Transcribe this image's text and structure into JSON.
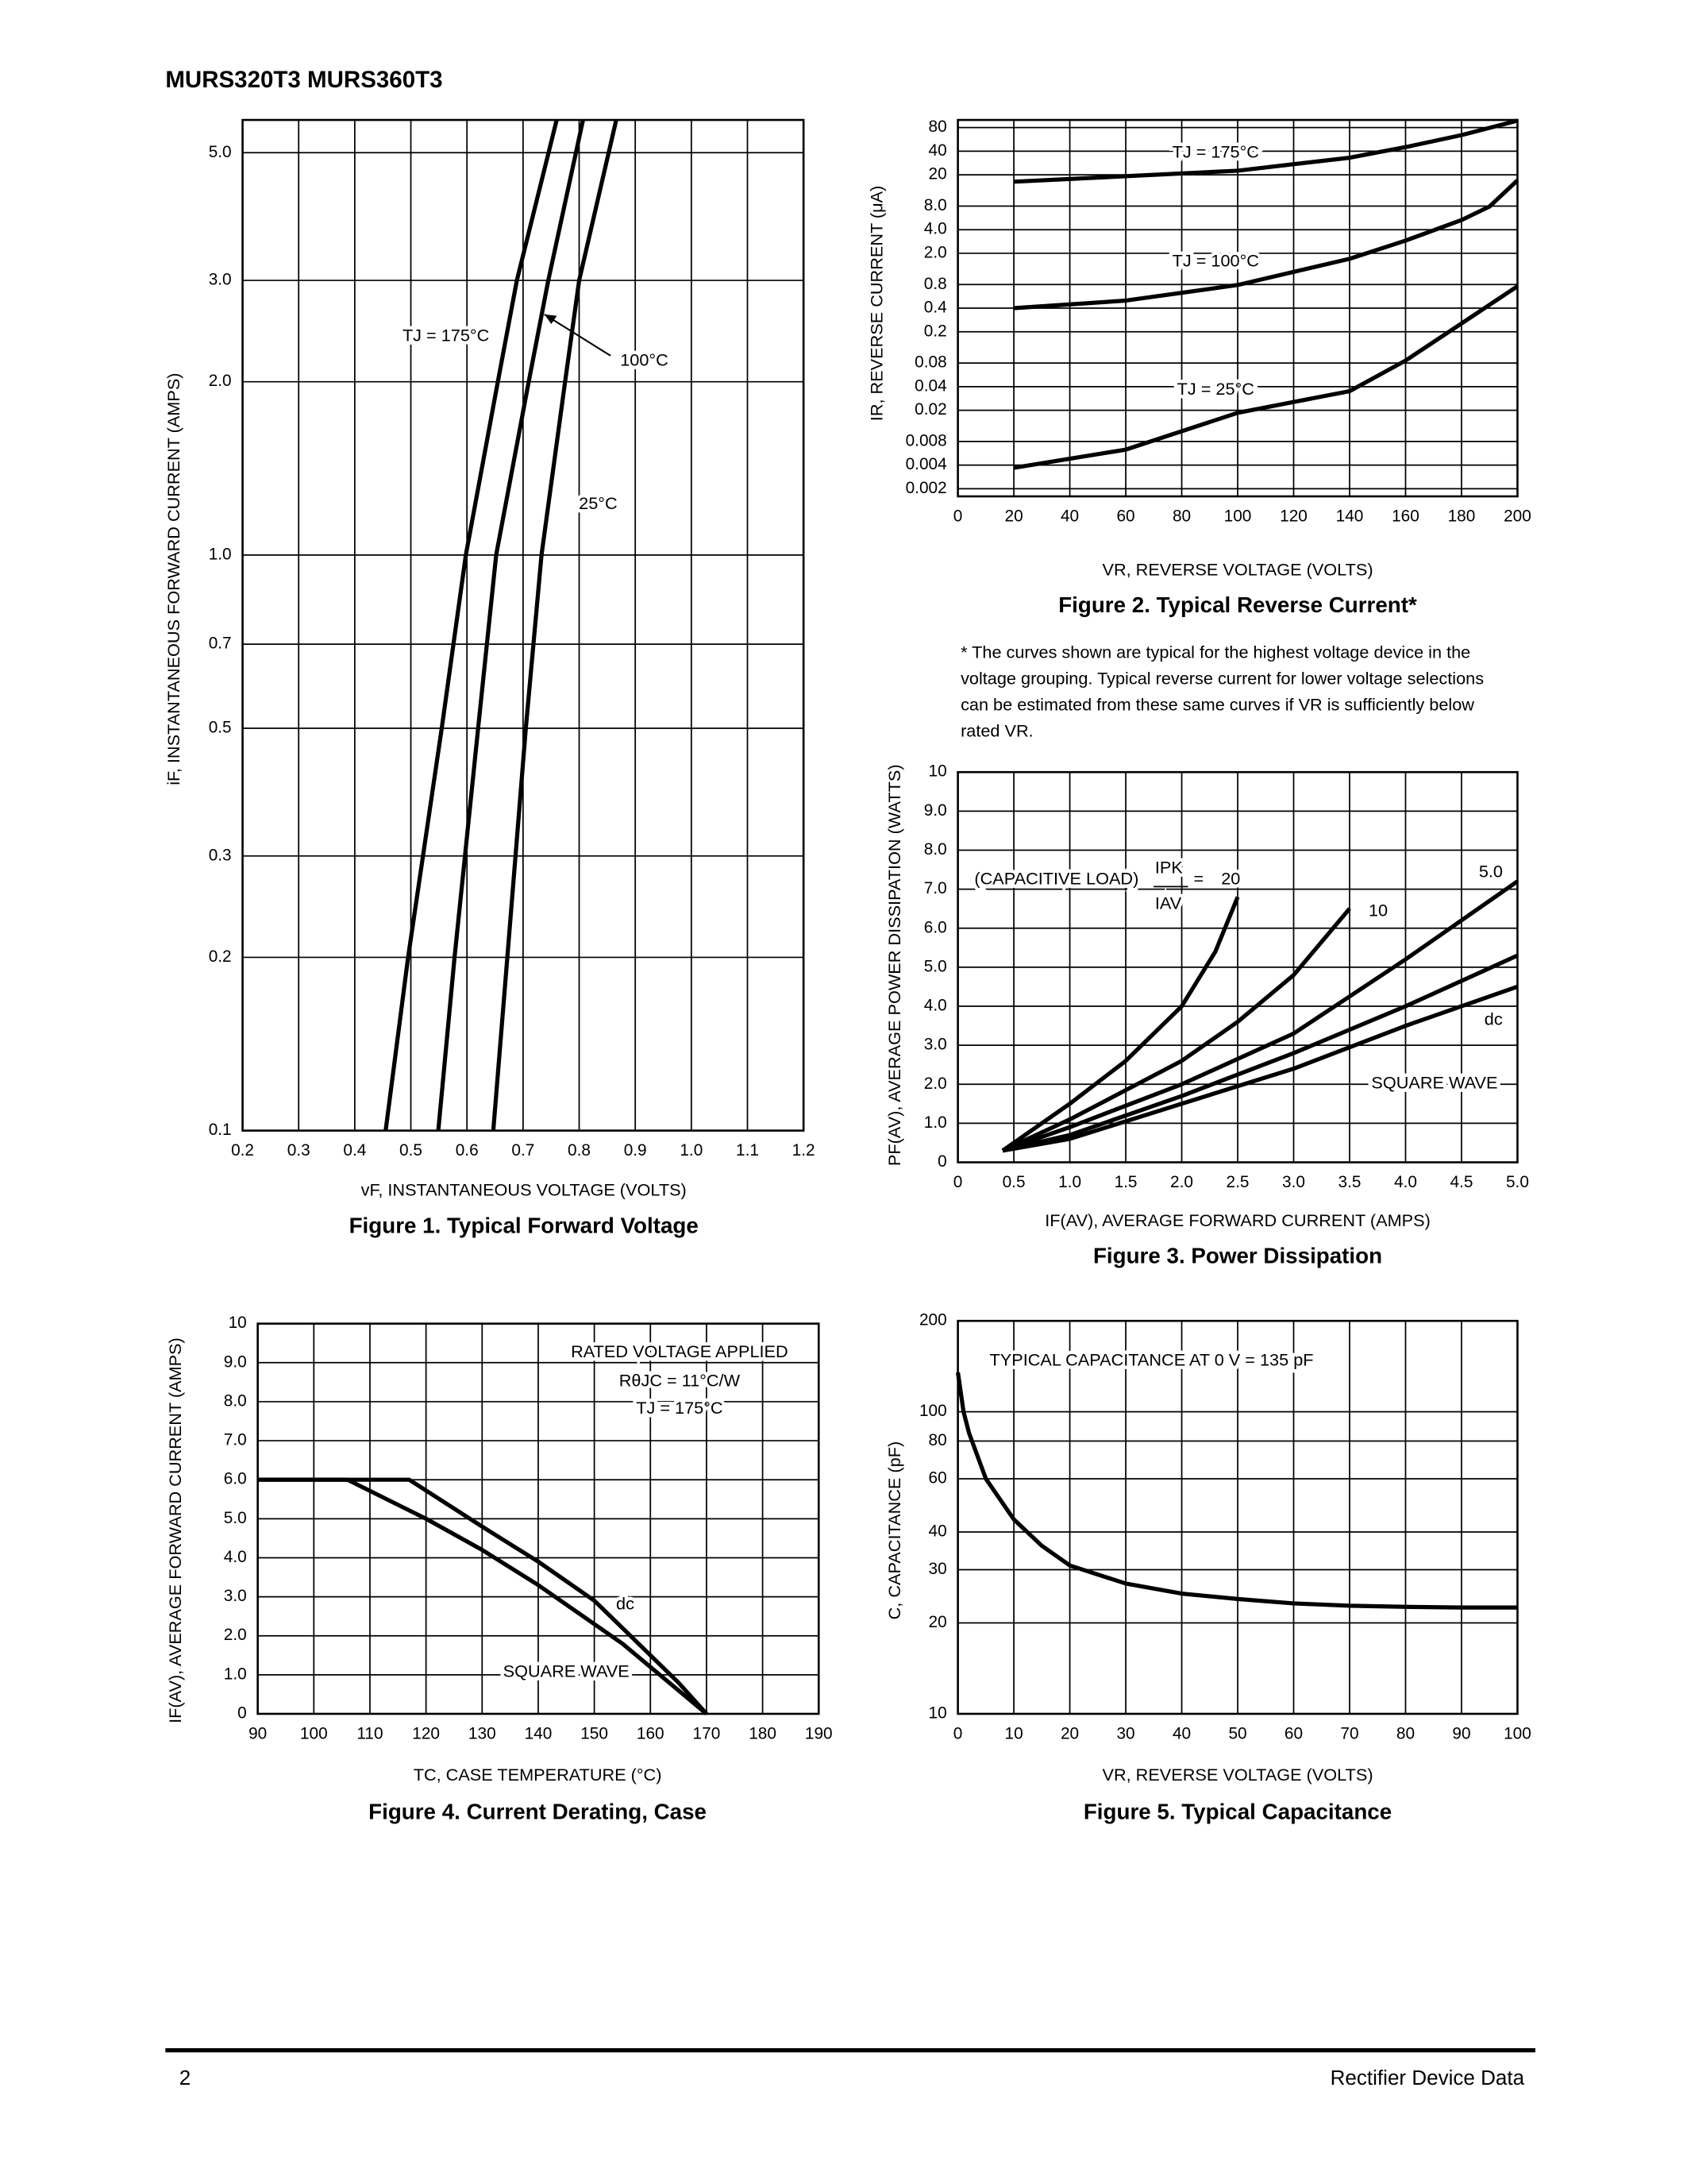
{
  "header": {
    "title": "MURS320T3 MURS360T3"
  },
  "footer": {
    "page": "2",
    "label": "Rectifier Device Data"
  },
  "chart_data": [
    {
      "type": "line",
      "title": "Figure 1. Typical Forward Voltage",
      "xlabel": "vF, INSTANTANEOUS VOLTAGE (VOLTS)",
      "ylabel": "iF, INSTANTANEOUS FORWARD CURRENT (AMPS)",
      "xlim": [
        0.2,
        1.2
      ],
      "ylim": [
        0.1,
        5.7
      ],
      "ylog": true,
      "grid": true,
      "xticks": [
        0.2,
        0.3,
        0.4,
        0.5,
        0.6,
        0.7,
        0.8,
        0.9,
        {
          "value": 1,
          "label": "1.0"
        },
        1.1,
        1.2
      ],
      "yticks": [
        0.1,
        0.2,
        0.3,
        0.5,
        0.7,
        {
          "value": 1,
          "label": "1.0"
        },
        {
          "value": 2,
          "label": "2.0"
        },
        {
          "value": 3,
          "label": "3.0"
        },
        {
          "value": 5,
          "label": "5.0"
        }
      ],
      "series": [
        {
          "name": "TJ = 175°C",
          "color": "#000000",
          "x": [
            0.455,
            0.495,
            0.555,
            0.598,
            0.655,
            0.689,
            0.76
          ],
          "values": [
            0.1,
            0.2,
            0.5,
            1,
            2,
            3,
            5.7
          ]
        },
        {
          "name": "100°C",
          "color": "#000000",
          "x": [
            0.549,
            0.578,
            0.62,
            0.652,
            0.71,
            0.745,
            0.807
          ],
          "values": [
            0.1,
            0.2,
            0.5,
            1,
            2,
            3,
            5.7
          ]
        },
        {
          "name": "25°C",
          "color": "#000000",
          "x": [
            0.647,
            0.672,
            0.705,
            0.733,
            0.775,
            0.8,
            0.866
          ],
          "values": [
            0.1,
            0.2,
            0.5,
            1,
            2,
            3,
            5.7
          ]
        }
      ]
    },
    {
      "type": "line",
      "title": "Figure 2. Typical Reverse Current*",
      "xlabel": "VR, REVERSE VOLTAGE (VOLTS)",
      "ylabel": "IR, REVERSE CURRENT (μA)",
      "xlim": [
        0,
        200
      ],
      "ylim": [
        0.0016,
        100
      ],
      "ylog": true,
      "grid": true,
      "xticks": [
        0,
        20,
        40,
        60,
        80,
        100,
        120,
        140,
        160,
        180,
        200
      ],
      "yticks": [
        0.002,
        0.004,
        0.008,
        0.02,
        0.04,
        0.08,
        0.2,
        0.4,
        0.8,
        {
          "value": 2,
          "label": "2.0"
        },
        {
          "value": 4,
          "label": "4.0"
        },
        {
          "value": 8,
          "label": "8.0"
        },
        20,
        40,
        80
      ],
      "series": [
        {
          "name": "TJ = 175°C",
          "color": "#000000",
          "x": [
            20,
            100,
            140,
            160,
            180,
            200
          ],
          "values": [
            16.3,
            22.6,
            33,
            45,
            64,
            98
          ]
        },
        {
          "name": "TJ = 100°C",
          "color": "#000000",
          "x": [
            20,
            60,
            100,
            140,
            160,
            180,
            190,
            200
          ],
          "values": [
            0.4,
            0.5,
            0.79,
            1.7,
            2.9,
            5.3,
            7.9,
            17
          ]
        },
        {
          "name": "TJ = 25°C",
          "color": "#000000",
          "x": [
            20,
            60,
            100,
            140,
            160,
            180,
            200
          ],
          "values": [
            0.0037,
            0.0063,
            0.0186,
            0.035,
            0.086,
            0.255,
            0.76
          ]
        }
      ],
      "note": [
        "* The curves shown are typical for the highest voltage device in the",
        "voltage grouping. Typical reverse current for lower voltage selections",
        "can be estimated from these same curves if VR is sufficiently below",
        "rated VR."
      ]
    },
    {
      "type": "line",
      "title": "Figure 3. Power Dissipation",
      "xlabel": "IF(AV), AVERAGE FORWARD CURRENT (AMPS)",
      "ylabel": "PF(AV), AVERAGE POWER DISSIPATION (WATTS)",
      "xlim": [
        0,
        5
      ],
      "ylim": [
        0,
        10
      ],
      "grid": true,
      "xticks": [
        0,
        0.5,
        {
          "value": 1,
          "label": "1.0"
        },
        1.5,
        {
          "value": 2,
          "label": "2.0"
        },
        2.5,
        {
          "value": 3,
          "label": "3.0"
        },
        3.5,
        {
          "value": 4,
          "label": "4.0"
        },
        4.5,
        {
          "value": 5,
          "label": "5.0"
        }
      ],
      "yticks": [
        0,
        {
          "value": 1,
          "label": "1.0"
        },
        {
          "value": 2,
          "label": "2.0"
        },
        {
          "value": 3,
          "label": "3.0"
        },
        {
          "value": 4,
          "label": "4.0"
        },
        {
          "value": 5,
          "label": "5.0"
        },
        {
          "value": 6,
          "label": "6.0"
        },
        {
          "value": 7,
          "label": "7.0"
        },
        {
          "value": 8,
          "label": "8.0"
        },
        {
          "value": 9,
          "label": "9.0"
        },
        10
      ],
      "series": [
        {
          "name": "20",
          "color": "#000000",
          "x": [
            0.4,
            1,
            1.5,
            2,
            2.3,
            2.5
          ],
          "values": [
            0.3,
            1.5,
            2.6,
            4,
            5.4,
            6.8
          ]
        },
        {
          "name": "10",
          "color": "#000000",
          "x": [
            0.4,
            1,
            2,
            2.5,
            3,
            3.5
          ],
          "values": [
            0.3,
            1.1,
            2.6,
            3.6,
            4.8,
            6.5
          ]
        },
        {
          "name": "5.0",
          "color": "#000000",
          "x": [
            0.4,
            1,
            2,
            3,
            4,
            5
          ],
          "values": [
            0.3,
            0.9,
            2,
            3.3,
            5.2,
            7.2
          ]
        },
        {
          "name": "dc",
          "color": "#000000",
          "x": [
            0.4,
            1,
            2,
            3,
            4,
            5
          ],
          "values": [
            0.3,
            0.6,
            1.5,
            2.4,
            3.5,
            4.5
          ]
        },
        {
          "name": "SQUARE WAVE",
          "color": "#000000",
          "x": [
            0.4,
            1,
            2,
            3,
            4,
            5
          ],
          "values": [
            0.3,
            0.7,
            1.7,
            2.8,
            4,
            5.3
          ]
        }
      ],
      "annotations": [
        "(CAPACITIVE  LOAD)",
        "IPK",
        "IAV",
        "="
      ]
    },
    {
      "type": "line",
      "title": "Figure 4. Current Derating, Case",
      "xlabel": "TC, CASE TEMPERATURE (°C)",
      "ylabel": "IF(AV), AVERAGE FORWARD CURRENT (AMPS)",
      "xlim": [
        90,
        190
      ],
      "ylim": [
        0,
        10
      ],
      "grid": true,
      "xticks": [
        90,
        100,
        110,
        120,
        130,
        140,
        150,
        160,
        170,
        180,
        190
      ],
      "yticks": [
        0,
        {
          "value": 1,
          "label": "1.0"
        },
        {
          "value": 2,
          "label": "2.0"
        },
        {
          "value": 3,
          "label": "3.0"
        },
        {
          "value": 4,
          "label": "4.0"
        },
        {
          "value": 5,
          "label": "5.0"
        },
        {
          "value": 6,
          "label": "6.0"
        },
        {
          "value": 7,
          "label": "7.0"
        },
        {
          "value": 8,
          "label": "8.0"
        },
        {
          "value": 9,
          "label": "9.0"
        },
        10
      ],
      "series": [
        {
          "name": "dc",
          "color": "#000000",
          "x": [
            90,
            117,
            130,
            140,
            150,
            155,
            160,
            165,
            170
          ],
          "values": [
            6,
            6,
            4.8,
            3.9,
            2.9,
            2.2,
            1.5,
            0.8,
            0
          ]
        },
        {
          "name": "SQUARE WAVE",
          "color": "#000000",
          "x": [
            90,
            106,
            120,
            130,
            140,
            150,
            155,
            160,
            170
          ],
          "values": [
            6,
            6,
            5,
            4.2,
            3.3,
            2.3,
            1.8,
            1.2,
            0
          ]
        }
      ],
      "annotations": [
        "RATED VOLTAGE APPLIED",
        "RθJC = 11°C/W",
        "TJ = 175°C"
      ]
    },
    {
      "type": "line",
      "title": "Figure 5. Typical Capacitance",
      "xlabel": "VR, REVERSE VOLTAGE (VOLTS)",
      "ylabel": "C, CAPACITANCE (pF)",
      "xlim": [
        0,
        100
      ],
      "ylim": [
        10,
        200
      ],
      "ylog": true,
      "grid": true,
      "xticks": [
        0,
        10,
        20,
        30,
        40,
        50,
        60,
        70,
        80,
        90,
        100
      ],
      "yticks": [
        10,
        20,
        30,
        40,
        60,
        80,
        100,
        200
      ],
      "series": [
        {
          "color": "#000000",
          "x": [
            0,
            1,
            2,
            5,
            10,
            15,
            20,
            30,
            40,
            50,
            60,
            70,
            80,
            90,
            100
          ],
          "values": [
            135,
            100,
            85,
            60,
            44,
            36,
            31,
            27,
            25,
            24,
            23.2,
            22.8,
            22.6,
            22.5,
            22.5
          ]
        }
      ],
      "annotations": [
        "TYPICAL CAPACITANCE AT 0 V = 135 pF"
      ]
    }
  ]
}
